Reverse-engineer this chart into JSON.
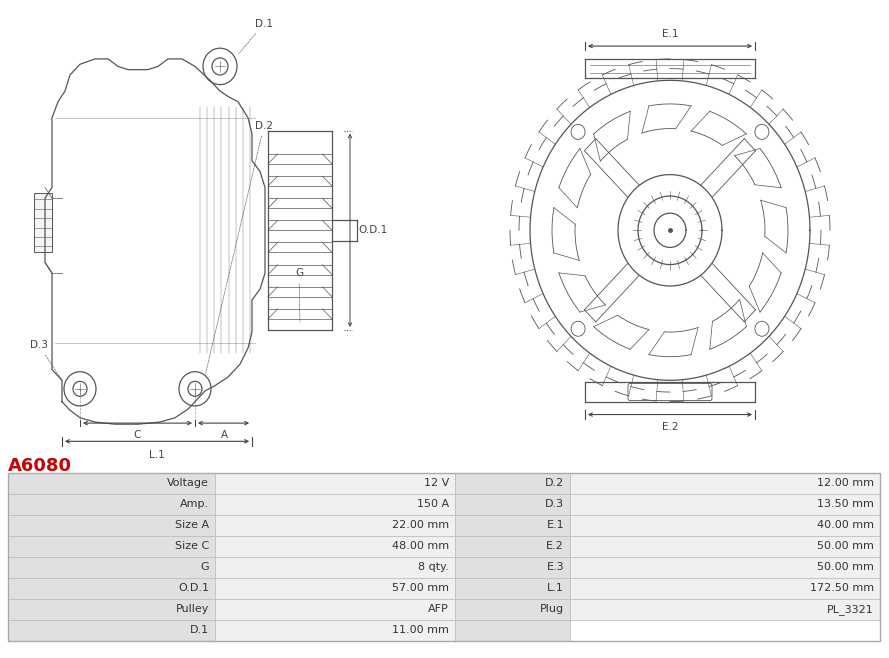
{
  "title": "A6080",
  "title_color": "#cc0000",
  "background_color": "#ffffff",
  "table_row_label_bg": "#e0e0e0",
  "table_row_value_bg": "#f0f0f0",
  "table_border_color": "#cccccc",
  "line_color": "#555555",
  "dim_color": "#444444",
  "rows": [
    [
      "Voltage",
      "12 V",
      "D.2",
      "12.00 mm"
    ],
    [
      "Amp.",
      "150 A",
      "D.3",
      "13.50 mm"
    ],
    [
      "Size A",
      "22.00 mm",
      "E.1",
      "40.00 mm"
    ],
    [
      "Size C",
      "48.00 mm",
      "E.2",
      "50.00 mm"
    ],
    [
      "G",
      "8 qty.",
      "E.3",
      "50.00 mm"
    ],
    [
      "O.D.1",
      "57.00 mm",
      "L.1",
      "172.50 mm"
    ],
    [
      "Pulley",
      "AFP",
      "Plug",
      "PL_3321"
    ],
    [
      "D.1",
      "11.00 mm",
      "",
      ""
    ]
  ]
}
